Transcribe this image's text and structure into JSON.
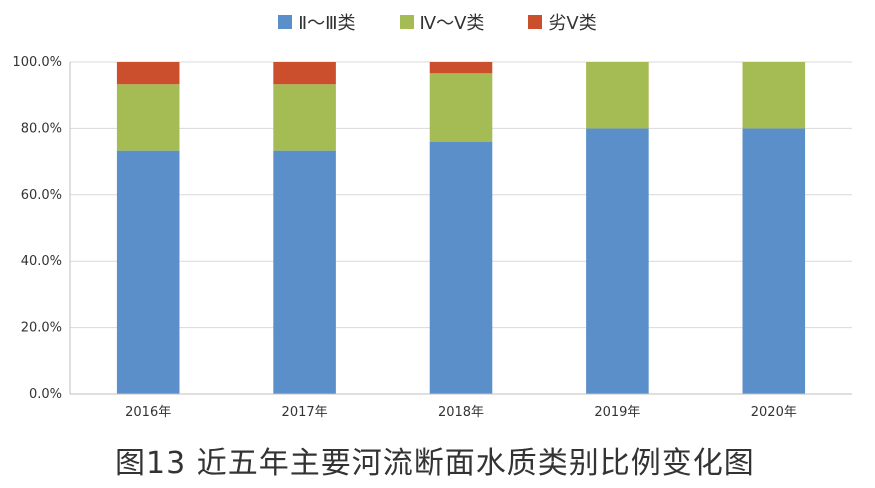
{
  "caption": "图13  近五年主要河流断面水质类别比例变化图",
  "chart_data": {
    "type": "bar",
    "stacked": true,
    "categories": [
      "2016年",
      "2017年",
      "2018年",
      "2019年",
      "2020年"
    ],
    "series": [
      {
        "name": "Ⅱ～Ⅲ类",
        "color": "#5B8FC9",
        "values": [
          73.3,
          73.3,
          75.9,
          80.0,
          80.0
        ]
      },
      {
        "name": "Ⅳ～Ⅴ类",
        "color": "#A5BB53",
        "values": [
          20.0,
          20.0,
          20.7,
          20.0,
          20.0
        ]
      },
      {
        "name": "劣Ⅴ类",
        "color": "#CB4F2C",
        "values": [
          6.7,
          6.7,
          3.4,
          0.0,
          0.0
        ]
      }
    ],
    "yticks": [
      "0.0%",
      "20.0%",
      "40.0%",
      "60.0%",
      "80.0%",
      "100.0%"
    ],
    "ylim": [
      0,
      100
    ],
    "grid": true,
    "legend_position": "top"
  }
}
